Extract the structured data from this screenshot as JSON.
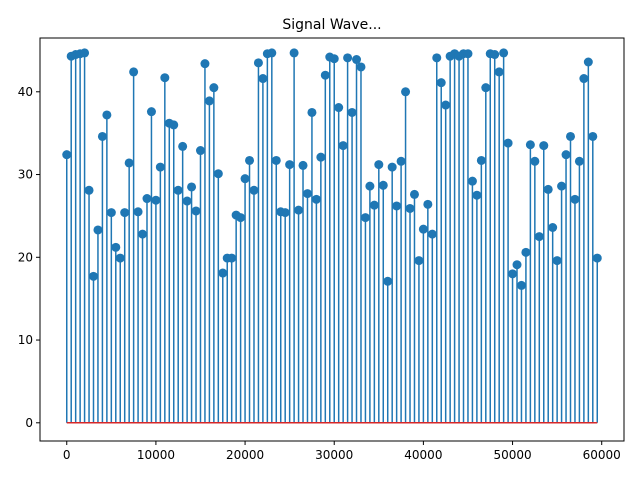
{
  "chart_data": {
    "type": "stem",
    "title": "Signal Wave...",
    "xlabel": "",
    "ylabel": "",
    "xlim": [
      -3000,
      62500
    ],
    "ylim": [
      -2.2,
      46.5
    ],
    "x_ticks": [
      0,
      10000,
      20000,
      30000,
      40000,
      50000,
      60000
    ],
    "y_ticks": [
      0,
      10,
      20,
      30,
      40
    ],
    "grid": false,
    "colors": {
      "stem": "#1f77b4",
      "baseline": "#d62728",
      "axes": "#000000"
    },
    "x_step": 500,
    "y": [
      32.4,
      44.3,
      44.5,
      44.6,
      44.7,
      28.1,
      17.7,
      23.3,
      34.6,
      37.2,
      25.4,
      21.2,
      19.9,
      25.4,
      31.4,
      42.4,
      25.5,
      22.8,
      27.1,
      37.6,
      26.9,
      30.9,
      41.7,
      36.2,
      36.0,
      28.1,
      33.4,
      26.8,
      28.5,
      25.6,
      32.9,
      43.4,
      38.9,
      40.5,
      30.1,
      18.1,
      19.9,
      19.9,
      25.1,
      24.8,
      29.5,
      31.7,
      28.1,
      43.5,
      41.6,
      44.6,
      44.7,
      31.7,
      25.5,
      25.4,
      31.2,
      44.7,
      25.7,
      31.1,
      27.7,
      37.5,
      27.0,
      32.1,
      42.0,
      44.2,
      44.0,
      38.1,
      33.5,
      44.1,
      37.5,
      43.9,
      43.0,
      24.8,
      28.6,
      26.3,
      31.2,
      28.7,
      17.1,
      30.9,
      26.2,
      31.6,
      40.0,
      25.9,
      27.6,
      19.6,
      23.4,
      26.4,
      22.8,
      44.1,
      41.1,
      38.4,
      44.3,
      44.6,
      44.3,
      44.6,
      44.6,
      29.2,
      27.5,
      31.7,
      40.5,
      44.6,
      44.5,
      42.4,
      44.7,
      33.8,
      18.0,
      19.1,
      16.6,
      20.6,
      33.6,
      31.6,
      22.5,
      33.5,
      28.2,
      23.6,
      19.6,
      28.6,
      32.4,
      34.6,
      27.0,
      31.6,
      41.6,
      43.6,
      34.6,
      19.9
    ]
  }
}
